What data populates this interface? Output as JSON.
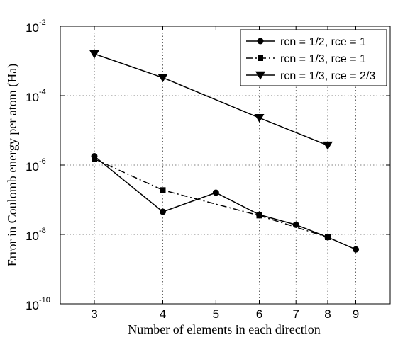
{
  "chart_data": {
    "type": "line",
    "title": "",
    "xlabel": "Number of elements in each direction",
    "ylabel": "Error in Coulomb energy per atom (Ha)",
    "yscale": "log",
    "xscale": "log",
    "xlim": [
      2.6,
      10.4
    ],
    "ylim": [
      1e-10,
      0.01
    ],
    "xticks": [
      3,
      4,
      5,
      6,
      7,
      8,
      9
    ],
    "yticks": [
      {
        "base": "10",
        "exp": "-10",
        "value": 1e-10
      },
      {
        "base": "10",
        "exp": "-8",
        "value": 1e-08
      },
      {
        "base": "10",
        "exp": "-6",
        "value": 1e-06
      },
      {
        "base": "10",
        "exp": "-4",
        "value": 0.0001
      },
      {
        "base": "10",
        "exp": "-2",
        "value": 0.01
      }
    ],
    "grid": true,
    "legend_position": "top-right",
    "series": [
      {
        "name": "rcn = 1/2, rce = 1",
        "marker": "circle",
        "line_style": "solid",
        "x": [
          3,
          4,
          5,
          6,
          7,
          8,
          9
        ],
        "y": [
          1.8e-06,
          4.5e-08,
          1.6e-07,
          3.7e-08,
          1.9e-08,
          8.3e-09,
          3.7e-09
        ]
      },
      {
        "name": "rcn = 1/3, rce = 1",
        "marker": "square",
        "line_style": "dashdot",
        "x": [
          3,
          4,
          6,
          8
        ],
        "y": [
          1.5e-06,
          1.9e-07,
          3.5e-08,
          8.3e-09
        ]
      },
      {
        "name": "rcn = 1/3, rce = 2/3",
        "marker": "triangle-down",
        "line_style": "solid",
        "x": [
          3,
          4,
          6,
          8
        ],
        "y": [
          0.0016,
          0.00033,
          2.3e-05,
          3.7e-06
        ]
      }
    ]
  }
}
